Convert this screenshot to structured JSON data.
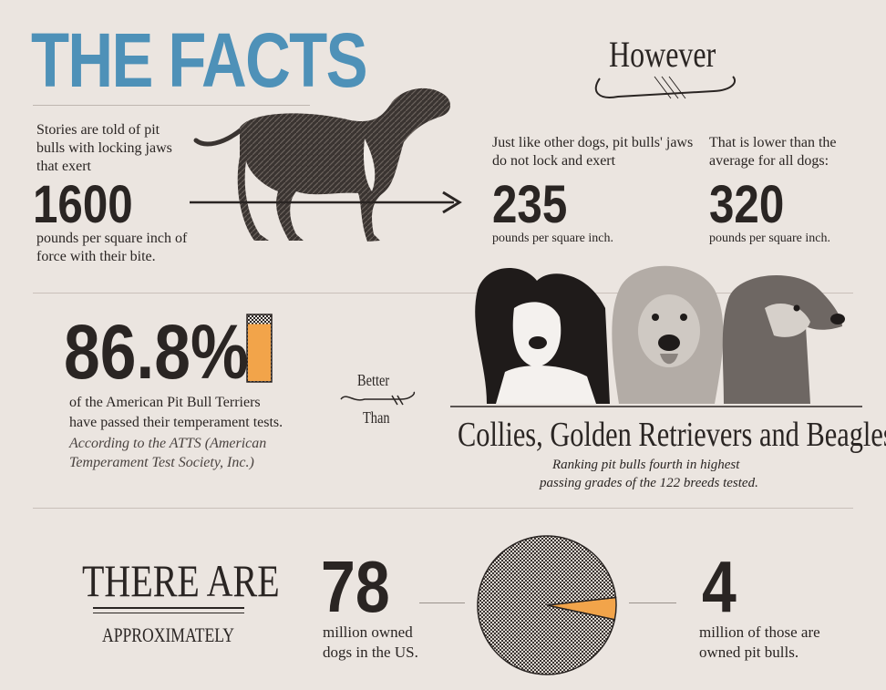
{
  "header": {
    "title": "THE FACTS",
    "however": "However"
  },
  "claim": {
    "intro": "Stories are told of pit bulls with locking jaws that exert",
    "number": "1600",
    "unit": "pounds per square inch of force with their bite."
  },
  "fact_pitbull": {
    "intro": "Just like other dogs, pit bulls' jaws do not lock and exert",
    "number": "235",
    "unit": "pounds per square inch."
  },
  "fact_average": {
    "intro": "That is lower than the average for all dogs:",
    "number": "320",
    "unit": "pounds per square inch."
  },
  "temperament": {
    "percent": "86.8%",
    "percent_value": 86.8,
    "line1": "of the American Pit Bull Terriers",
    "line2": "have passed their temperament tests.",
    "source1": "According to the ATTS (American",
    "source2": "Temperament Test Society, Inc.)",
    "accent_color": "#f2a44a",
    "better": "Better",
    "than": "Than",
    "breeds": "Collies, Golden Retrievers and Beagles",
    "ranking1": "Ranking pit bulls fourth in highest",
    "ranking2": "passing grades of the 122 breeds tested."
  },
  "population": {
    "there_are": "THERE ARE",
    "approximately": "APPROXIMATELY",
    "total_number": "78",
    "total_text1": "million owned",
    "total_text2": "dogs in the US.",
    "pit_number": "4",
    "pit_text1": "million of those are",
    "pit_text2": "owned pit bulls."
  },
  "chart_data": {
    "type": "pie",
    "slices": [
      {
        "label": "other dogs",
        "value": 74,
        "color": "#8f8a86"
      },
      {
        "label": "pit bulls",
        "value": 4,
        "color": "#f2a44a"
      }
    ]
  },
  "icons": [
    "dog-illustration",
    "arrow-icon",
    "dogs-photo",
    "swash-ornament"
  ]
}
